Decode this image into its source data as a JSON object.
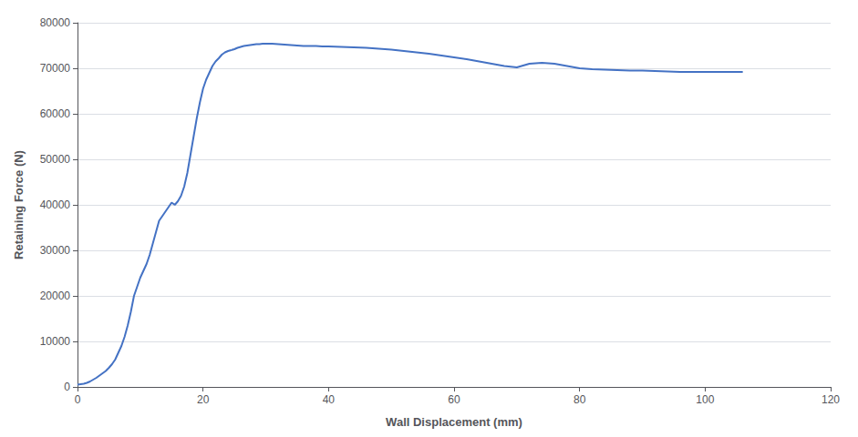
{
  "chart_data": {
    "type": "line",
    "xlabel": "Wall Displacement (mm)",
    "ylabel": "Retaining Force (N)",
    "x": [
      0,
      0.5,
      1.0,
      1.5,
      2.0,
      2.5,
      3.0,
      3.5,
      4.0,
      4.5,
      5.0,
      5.5,
      6.0,
      6.5,
      7.0,
      7.5,
      8.0,
      8.5,
      9.0,
      9.5,
      10.0,
      10.5,
      11.0,
      11.5,
      12.0,
      12.5,
      13.0,
      13.5,
      14.0,
      14.5,
      15.0,
      15.5,
      16.0,
      16.5,
      17.0,
      17.5,
      18.0,
      18.5,
      19.0,
      19.5,
      20.0,
      20.5,
      21.0,
      21.5,
      22.0,
      22.5,
      23.0,
      23.5,
      24.0,
      24.5,
      25.0,
      25.5,
      26.0,
      26.5,
      27.0,
      27.5,
      28.0,
      28.5,
      29.0,
      29.5,
      30.0,
      31.0,
      32.0,
      33.0,
      34.0,
      35.0,
      36.0,
      37.0,
      38.0,
      39.0,
      40.0,
      42.0,
      44.0,
      46.0,
      48.0,
      50.0,
      52.0,
      54.0,
      56.0,
      58.0,
      60.0,
      62.0,
      64.0,
      66.0,
      68.0,
      70.0,
      72.0,
      74.0,
      76.0,
      78.0,
      80.0,
      82.0,
      84.0,
      86.0,
      88.0,
      90.0,
      92.0,
      94.0,
      96.0,
      98.0,
      100.0,
      102.0,
      104.0,
      106.0
    ],
    "values": [
      500,
      600,
      700,
      900,
      1200,
      1600,
      2000,
      2500,
      3000,
      3500,
      4200,
      5000,
      6000,
      7500,
      9000,
      11000,
      13500,
      16500,
      20000,
      22000,
      24000,
      25500,
      27000,
      29000,
      31500,
      34000,
      36500,
      37500,
      38500,
      39500,
      40500,
      40000,
      40800,
      42000,
      44000,
      47000,
      51000,
      55000,
      59000,
      62500,
      65500,
      67500,
      69000,
      70500,
      71500,
      72200,
      73000,
      73500,
      73800,
      74000,
      74200,
      74500,
      74700,
      74900,
      75000,
      75100,
      75200,
      75300,
      75300,
      75400,
      75400,
      75400,
      75300,
      75200,
      75100,
      75000,
      74900,
      74900,
      74900,
      74800,
      74800,
      74700,
      74600,
      74500,
      74300,
      74100,
      73800,
      73500,
      73200,
      72800,
      72400,
      72000,
      71500,
      71000,
      70500,
      70200,
      71000,
      71200,
      71000,
      70500,
      70000,
      69800,
      69700,
      69600,
      69500,
      69500,
      69400,
      69300,
      69200,
      69200,
      69200,
      69200,
      69200,
      69200
    ],
    "color": "#4472C4",
    "xlim": [
      0,
      120
    ],
    "ylim": [
      0,
      80000
    ],
    "xticks": [
      0,
      20,
      40,
      60,
      80,
      100,
      120
    ],
    "yticks": [
      0,
      10000,
      20000,
      30000,
      40000,
      50000,
      60000,
      70000,
      80000
    ],
    "grid": true
  }
}
